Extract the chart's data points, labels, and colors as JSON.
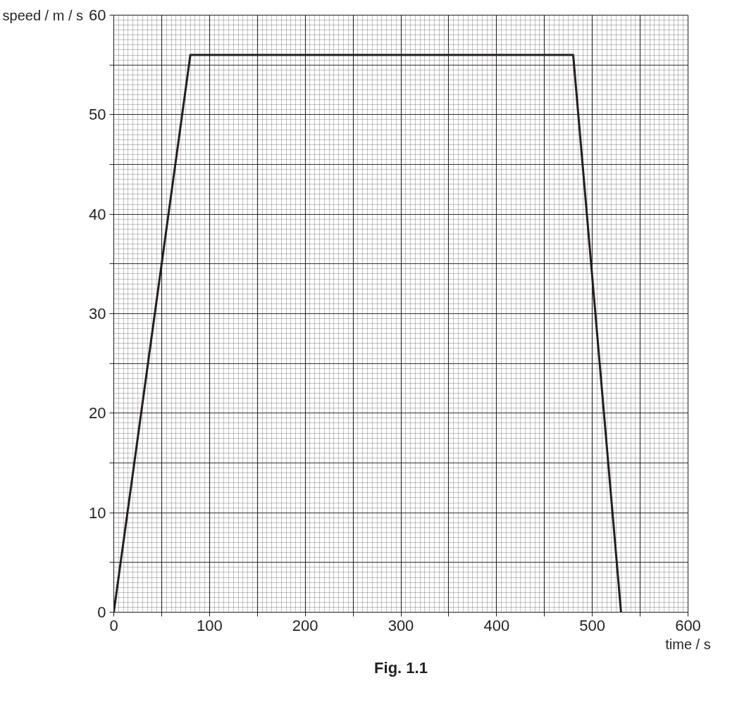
{
  "chart_data": {
    "type": "line",
    "xlabel": "time / s",
    "ylabel": "speed / m / s",
    "annotations": [
      "Fig. 1.1"
    ],
    "x": [
      0,
      80,
      480,
      530
    ],
    "series": [
      {
        "color": "#231f20",
        "values": [
          0,
          56,
          56,
          0
        ]
      }
    ],
    "xlim": [
      0,
      600
    ],
    "ylim": [
      0,
      60
    ],
    "xticks": [
      0,
      {
        "value": 50,
        "label": null
      },
      100,
      {
        "value": 150,
        "label": null
      },
      200,
      {
        "value": 250,
        "label": null
      },
      300,
      {
        "value": 350,
        "label": null
      },
      400,
      {
        "value": 450,
        "label": null
      },
      500,
      {
        "value": 550,
        "label": null
      },
      600
    ],
    "yticks": [
      0,
      {
        "value": 5,
        "label": null
      },
      10,
      {
        "value": 15,
        "label": null
      },
      20,
      {
        "value": 25,
        "label": null
      },
      30,
      {
        "value": 35,
        "label": null
      },
      40,
      {
        "value": 45,
        "label": null
      },
      50,
      {
        "value": 55,
        "label": null
      },
      60
    ],
    "grid": true,
    "marker": "none",
    "line_style": "solid"
  }
}
